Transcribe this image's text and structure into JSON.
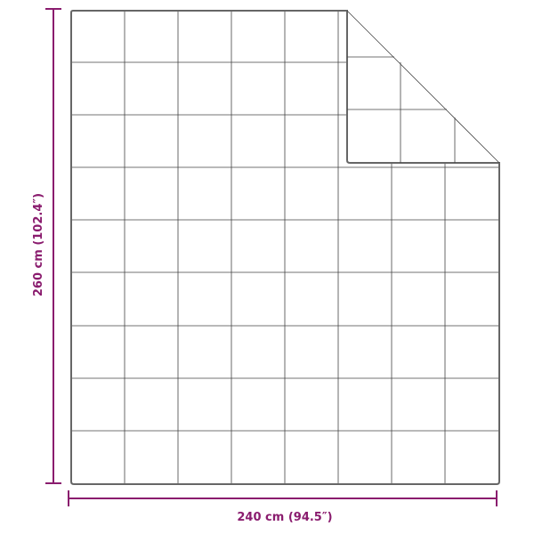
{
  "dimensions": {
    "height_label": "260 cm (102.4″)",
    "width_label": "240 cm (94.5″)"
  },
  "colors": {
    "dimension": "#8a1c6e",
    "outline": "#555555",
    "grid": "#444444"
  }
}
